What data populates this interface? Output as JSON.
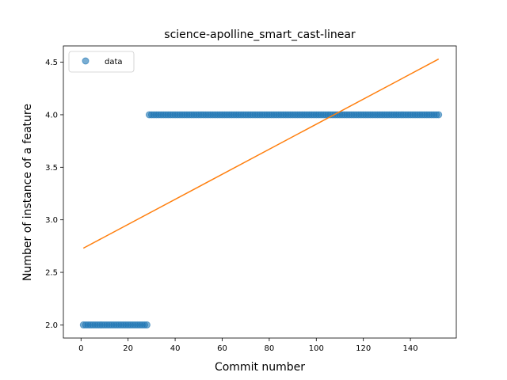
{
  "chart_data": {
    "type": "scatter",
    "title": "science-apolline_smart_cast-linear",
    "xlabel": "Commit number",
    "ylabel": "Number of instance of a feature",
    "xlim": [
      -7.5,
      159.5
    ],
    "ylim": [
      1.875,
      4.655
    ],
    "xticks": [
      0,
      20,
      40,
      60,
      80,
      100,
      120,
      140
    ],
    "yticks": [
      2.0,
      2.5,
      3.0,
      3.5,
      4.0,
      4.5
    ],
    "xtick_labels": [
      "0",
      "20",
      "40",
      "60",
      "80",
      "100",
      "120",
      "140"
    ],
    "ytick_labels": [
      "2.0",
      "2.5",
      "3.0",
      "3.5",
      "4.0",
      "4.5"
    ],
    "grid": false,
    "legend_position": "upper-left",
    "series": [
      {
        "name": "data",
        "kind": "points",
        "color": "#1f77b4",
        "segments": [
          {
            "x_start": 1,
            "x_end": 28,
            "y": 2.0
          },
          {
            "x_start": 29,
            "x_end": 152,
            "y": 4.0
          }
        ]
      },
      {
        "kind": "line",
        "color": "#ff7f0e",
        "x": [
          1,
          152
        ],
        "y": [
          2.73,
          4.53
        ]
      }
    ]
  },
  "colors": {
    "data_points": "#1f77b4",
    "fit_line": "#ff7f0e",
    "axes": "#000000",
    "background": "#ffffff"
  }
}
